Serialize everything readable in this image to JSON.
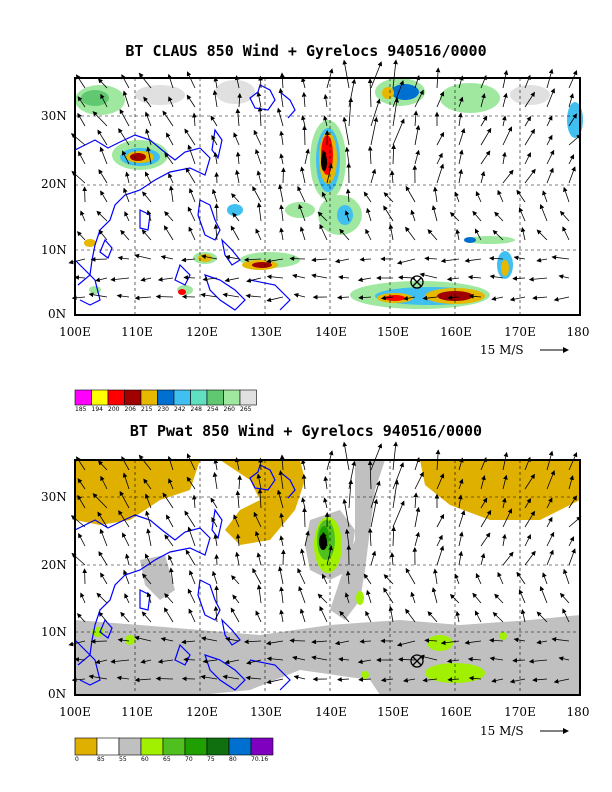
{
  "map1": {
    "title": "BT CLAUS 850 Wind + Gyrelocs 940516/0000",
    "lat_labels": [
      "30N",
      "20N",
      "10N",
      "0N"
    ],
    "lon_labels": [
      "100E",
      "110E",
      "120E",
      "130E",
      "140E",
      "150E",
      "160E",
      "170E",
      "180"
    ],
    "scale_label": "15 M/S",
    "colorbar_labels": [
      "185",
      "194",
      "200",
      "206",
      "215",
      "230",
      "242",
      "248",
      "254",
      "260",
      "265"
    ],
    "colorbar_colors": [
      "#ff00ff",
      "#ffff00",
      "#ff0000",
      "#a00000",
      "#e6b800",
      "#0070d0",
      "#40c0f0",
      "#60e0c0",
      "#60c870",
      "#a0e8a0",
      "#e0e0e0"
    ]
  },
  "map2": {
    "title": "BT Pwat 850 Wind + Gyrelocs 940516/0000",
    "lat_labels": [
      "30N",
      "20N",
      "10N",
      "0N"
    ],
    "lon_labels": [
      "100E",
      "110E",
      "120E",
      "130E",
      "140E",
      "150E",
      "160E",
      "170E",
      "180"
    ],
    "scale_label": "15 M/S",
    "colorbar_labels": [
      "0",
      "85",
      "55",
      "60",
      "65",
      "70",
      "75",
      "80",
      "70.16"
    ],
    "colorbar_colors": [
      "#e0b000",
      "#ffffff",
      "#c0c0c0",
      "#a0f000",
      "#50c020",
      "#20a000",
      "#107010",
      "#0070d0",
      "#8000c0"
    ]
  },
  "colors": {
    "coast": "#0000ff",
    "frame": "#000000",
    "marker": "#000000"
  }
}
